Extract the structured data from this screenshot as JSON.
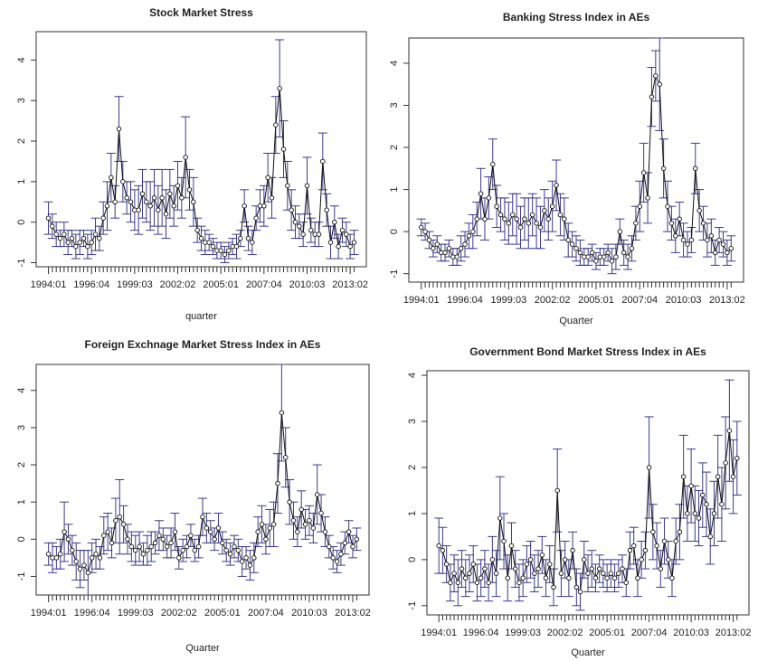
{
  "chart_data": [
    {
      "type": "line",
      "title": "Stock Market Stress",
      "x_label": "quarter",
      "color": "#111111",
      "error_color": "#3b3b8f",
      "categories": [
        "1994:01",
        null,
        null,
        null,
        null,
        null,
        null,
        null,
        null,
        null,
        null,
        "1996:04",
        null,
        null,
        null,
        null,
        null,
        null,
        null,
        null,
        null,
        null,
        "1999:03",
        null,
        null,
        null,
        null,
        null,
        null,
        null,
        null,
        null,
        null,
        "2002:02",
        null,
        null,
        null,
        null,
        null,
        null,
        null,
        null,
        null,
        null,
        "2005:01",
        null,
        null,
        null,
        null,
        null,
        null,
        null,
        null,
        null,
        null,
        "2007:04",
        null,
        null,
        null,
        null,
        null,
        null,
        null,
        null,
        null,
        null,
        "2010:03",
        null,
        null,
        null,
        null,
        null,
        null,
        null,
        null,
        null,
        null,
        "2013:02",
        null
      ],
      "values": [
        0.1,
        -0.1,
        -0.3,
        -0.4,
        -0.3,
        -0.5,
        -0.4,
        -0.6,
        -0.5,
        -0.4,
        -0.6,
        -0.5,
        -0.3,
        -0.4,
        0.1,
        0.4,
        1.1,
        0.5,
        2.3,
        1.0,
        0.6,
        0.5,
        0.3,
        0.3,
        0.7,
        0.5,
        0.4,
        0.6,
        0.3,
        0.6,
        0.2,
        0.7,
        0.4,
        0.9,
        0.6,
        1.6,
        0.8,
        0.5,
        -0.2,
        -0.4,
        -0.5,
        -0.5,
        -0.6,
        -0.7,
        -0.7,
        -0.8,
        -0.7,
        -0.6,
        -0.6,
        -0.4,
        0.4,
        -0.4,
        -0.5,
        0.1,
        0.4,
        0.4,
        1.1,
        0.6,
        2.4,
        3.3,
        1.8,
        0.9,
        0.3,
        0.0,
        -0.1,
        -0.3,
        0.9,
        -0.2,
        -0.3,
        -0.3,
        1.5,
        0.3,
        -0.5,
        0.0,
        -0.6,
        -0.2,
        -0.3,
        -0.6,
        -0.5
      ],
      "errors": [
        0.4,
        0.3,
        0.3,
        0.2,
        0.3,
        0.3,
        0.2,
        0.3,
        0.3,
        0.2,
        0.3,
        0.3,
        0.4,
        0.3,
        0.4,
        0.6,
        0.6,
        0.4,
        0.8,
        0.5,
        0.4,
        0.5,
        0.5,
        0.6,
        0.6,
        0.5,
        0.6,
        0.7,
        0.6,
        0.7,
        0.6,
        0.6,
        0.5,
        0.6,
        0.5,
        1.0,
        0.5,
        0.6,
        0.3,
        0.3,
        0.3,
        0.2,
        0.2,
        0.2,
        0.2,
        0.2,
        0.2,
        0.2,
        0.3,
        0.2,
        0.4,
        0.3,
        0.3,
        0.3,
        0.4,
        0.5,
        0.6,
        0.5,
        0.7,
        1.2,
        0.7,
        0.6,
        0.5,
        0.4,
        0.3,
        0.3,
        0.7,
        0.3,
        0.3,
        0.3,
        0.7,
        0.4,
        0.4,
        0.4,
        0.3,
        0.3,
        0.3,
        0.3,
        0.3
      ],
      "ylim": [
        -1.1,
        4.7
      ],
      "yticks": [
        -1,
        0,
        1,
        2,
        3,
        4
      ]
    },
    {
      "type": "line",
      "title": "Banking Stress Index in AEs",
      "x_label": "Quarter",
      "color": "#111111",
      "error_color": "#3b3b8f",
      "categories": [
        "1994:01",
        null,
        null,
        null,
        null,
        null,
        null,
        null,
        null,
        null,
        null,
        "1996:04",
        null,
        null,
        null,
        null,
        null,
        null,
        null,
        null,
        null,
        null,
        "1999:03",
        null,
        null,
        null,
        null,
        null,
        null,
        null,
        null,
        null,
        null,
        "2002:02",
        null,
        null,
        null,
        null,
        null,
        null,
        null,
        null,
        null,
        null,
        "2005:01",
        null,
        null,
        null,
        null,
        null,
        null,
        null,
        null,
        null,
        null,
        "2007:04",
        null,
        null,
        null,
        null,
        null,
        null,
        null,
        null,
        null,
        null,
        "2010:03",
        null,
        null,
        null,
        null,
        null,
        null,
        null,
        null,
        null,
        null,
        "2013:02",
        null
      ],
      "values": [
        0.1,
        0.0,
        -0.2,
        -0.4,
        -0.3,
        -0.5,
        -0.5,
        -0.4,
        -0.6,
        -0.6,
        -0.4,
        -0.3,
        -0.1,
        0.0,
        0.3,
        0.9,
        0.3,
        0.8,
        1.6,
        0.6,
        0.4,
        0.3,
        0.2,
        0.4,
        0.3,
        0.1,
        0.3,
        0.2,
        0.4,
        0.2,
        0.1,
        0.5,
        0.3,
        0.6,
        1.1,
        0.4,
        0.3,
        -0.2,
        -0.3,
        -0.4,
        -0.5,
        -0.6,
        -0.6,
        -0.5,
        -0.7,
        -0.6,
        -0.6,
        -0.5,
        -0.7,
        -0.6,
        0.0,
        -0.5,
        -0.6,
        -0.4,
        0.2,
        0.6,
        1.4,
        0.8,
        3.2,
        3.7,
        3.5,
        1.5,
        0.6,
        0.2,
        -0.1,
        0.3,
        -0.2,
        -0.3,
        -0.2,
        1.5,
        0.5,
        0.2,
        -0.2,
        -0.1,
        -0.5,
        -0.2,
        -0.3,
        -0.5,
        -0.4
      ],
      "errors": [
        0.2,
        0.2,
        0.2,
        0.2,
        0.2,
        0.2,
        0.2,
        0.2,
        0.2,
        0.2,
        0.3,
        0.3,
        0.3,
        0.4,
        0.4,
        0.6,
        0.5,
        0.5,
        0.6,
        0.5,
        0.4,
        0.5,
        0.5,
        0.5,
        0.6,
        0.5,
        0.5,
        0.6,
        0.5,
        0.6,
        0.5,
        0.5,
        0.5,
        0.6,
        0.6,
        0.5,
        0.5,
        0.4,
        0.3,
        0.3,
        0.3,
        0.2,
        0.2,
        0.2,
        0.2,
        0.2,
        0.2,
        0.2,
        0.3,
        0.3,
        0.3,
        0.3,
        0.3,
        0.3,
        0.4,
        0.6,
        0.7,
        0.6,
        0.7,
        0.6,
        1.1,
        0.7,
        0.6,
        0.4,
        0.4,
        0.4,
        0.4,
        0.3,
        0.3,
        0.6,
        0.5,
        0.4,
        0.4,
        0.4,
        0.3,
        0.3,
        0.3,
        0.3,
        0.3
      ],
      "ylim": [
        -1.2,
        4.6
      ],
      "yticks": [
        -1,
        0,
        1,
        2,
        3,
        4
      ]
    },
    {
      "type": "line",
      "title": "Foreign Exchnage Market Stress Index in AEs",
      "x_label": "Quarter",
      "color": "#111111",
      "error_color": "#3b3b8f",
      "categories": [
        "1994:01",
        null,
        null,
        null,
        null,
        null,
        null,
        null,
        null,
        null,
        null,
        "1996:04",
        null,
        null,
        null,
        null,
        null,
        null,
        null,
        null,
        null,
        null,
        "1999:03",
        null,
        null,
        null,
        null,
        null,
        null,
        null,
        null,
        null,
        null,
        "2002:02",
        null,
        null,
        null,
        null,
        null,
        null,
        null,
        null,
        null,
        null,
        "2005:01",
        null,
        null,
        null,
        null,
        null,
        null,
        null,
        null,
        null,
        null,
        "2007:04",
        null,
        null,
        null,
        null,
        null,
        null,
        null,
        null,
        null,
        null,
        "2010:03",
        null,
        null,
        null,
        null,
        null,
        null,
        null,
        null,
        null,
        null,
        "2013:02",
        null
      ],
      "values": [
        -0.4,
        -0.5,
        -0.5,
        -0.4,
        0.2,
        0.0,
        -0.3,
        -0.6,
        -0.8,
        -0.7,
        -0.9,
        -0.5,
        -0.4,
        -0.5,
        0.1,
        0.2,
        -0.1,
        0.5,
        0.6,
        0.4,
        0.0,
        -0.2,
        -0.3,
        -0.2,
        -0.4,
        -0.3,
        -0.2,
        -0.1,
        0.1,
        0.0,
        -0.2,
        -0.1,
        0.2,
        -0.5,
        -0.3,
        -0.2,
        0.1,
        -0.3,
        -0.2,
        0.6,
        0.3,
        0.2,
        0.0,
        0.3,
        -0.1,
        -0.3,
        -0.4,
        -0.2,
        -0.3,
        -0.6,
        -0.5,
        -0.7,
        -0.5,
        0.2,
        0.4,
        0.0,
        0.3,
        0.4,
        1.5,
        3.4,
        2.2,
        1.0,
        0.5,
        0.2,
        0.8,
        0.4,
        0.5,
        0.3,
        1.2,
        0.7,
        0.2,
        -0.2,
        -0.5,
        -0.6,
        -0.4,
        -0.1,
        0.2,
        -0.2,
        0.0
      ],
      "errors": [
        0.3,
        0.4,
        0.3,
        0.4,
        0.8,
        0.4,
        0.4,
        0.5,
        0.5,
        0.4,
        0.6,
        0.4,
        0.4,
        0.3,
        0.5,
        0.5,
        0.4,
        0.6,
        1.0,
        0.5,
        0.4,
        0.4,
        0.4,
        0.4,
        0.3,
        0.4,
        0.4,
        0.3,
        0.4,
        0.3,
        0.3,
        0.4,
        0.5,
        0.3,
        0.3,
        0.3,
        0.3,
        0.3,
        0.3,
        0.5,
        0.4,
        0.3,
        0.3,
        0.4,
        0.3,
        0.3,
        0.3,
        0.3,
        0.3,
        0.4,
        0.3,
        0.4,
        0.4,
        0.4,
        0.5,
        0.4,
        0.5,
        0.6,
        0.8,
        1.3,
        0.8,
        0.6,
        0.5,
        0.4,
        0.5,
        0.4,
        0.4,
        0.4,
        0.8,
        0.5,
        0.4,
        0.3,
        0.3,
        0.3,
        0.3,
        0.3,
        0.3,
        0.3,
        0.3
      ],
      "ylim": [
        -1.5,
        4.7
      ],
      "yticks": [
        -1,
        0,
        1,
        2,
        3,
        4
      ]
    },
    {
      "type": "line",
      "title": "Government Bond Market Stress Index in AEs",
      "x_label": "Quarter",
      "color": "#111111",
      "error_color": "#3b3b8f",
      "categories": [
        "1994:01",
        null,
        null,
        null,
        null,
        null,
        null,
        null,
        null,
        null,
        null,
        "1996:04",
        null,
        null,
        null,
        null,
        null,
        null,
        null,
        null,
        null,
        null,
        "1999:03",
        null,
        null,
        null,
        null,
        null,
        null,
        null,
        null,
        null,
        null,
        "2002:02",
        null,
        null,
        null,
        null,
        null,
        null,
        null,
        null,
        null,
        null,
        "2005:01",
        null,
        null,
        null,
        null,
        null,
        null,
        null,
        null,
        null,
        null,
        "2007:04",
        null,
        null,
        null,
        null,
        null,
        null,
        null,
        null,
        null,
        null,
        "2010:03",
        null,
        null,
        null,
        null,
        null,
        null,
        null,
        null,
        null,
        null,
        "2013:02",
        null
      ],
      "values": [
        0.3,
        0.2,
        -0.1,
        -0.5,
        -0.3,
        -0.5,
        -0.2,
        -0.4,
        -0.3,
        -0.1,
        -0.5,
        -0.4,
        -0.2,
        -0.5,
        0.0,
        -0.3,
        0.9,
        0.4,
        -0.4,
        0.3,
        -0.2,
        -0.5,
        -0.4,
        -0.1,
        0.0,
        -0.3,
        -0.2,
        0.1,
        -0.4,
        -0.1,
        -0.6,
        1.5,
        -0.3,
        0.0,
        -0.4,
        0.2,
        -0.6,
        -0.7,
        0.0,
        -0.3,
        -0.2,
        -0.4,
        -0.2,
        -0.3,
        -0.4,
        -0.3,
        -0.4,
        -0.3,
        -0.2,
        -0.5,
        0.2,
        0.3,
        -0.4,
        0.0,
        0.2,
        2.0,
        0.6,
        0.3,
        -0.2,
        0.4,
        0.0,
        -0.4,
        0.4,
        0.6,
        1.8,
        1.0,
        1.6,
        1.0,
        0.9,
        1.4,
        1.2,
        0.5,
        1.0,
        1.8,
        1.2,
        2.1,
        2.8,
        1.8,
        2.2
      ],
      "errors": [
        0.6,
        0.5,
        0.4,
        0.4,
        0.4,
        0.5,
        0.4,
        0.4,
        0.4,
        0.4,
        0.4,
        0.4,
        0.4,
        0.4,
        0.5,
        0.5,
        0.9,
        0.6,
        0.5,
        0.5,
        0.4,
        0.4,
        0.4,
        0.4,
        0.4,
        0.4,
        0.4,
        0.4,
        0.4,
        0.4,
        0.4,
        0.9,
        0.5,
        0.4,
        0.4,
        0.4,
        0.4,
        0.4,
        0.4,
        0.4,
        0.4,
        0.3,
        0.3,
        0.3,
        0.3,
        0.3,
        0.3,
        0.3,
        0.3,
        0.3,
        0.4,
        0.4,
        0.4,
        0.4,
        0.4,
        1.1,
        0.6,
        0.5,
        0.4,
        0.5,
        0.4,
        0.4,
        0.5,
        0.6,
        0.9,
        0.6,
        0.8,
        0.6,
        0.6,
        0.7,
        0.7,
        0.6,
        0.7,
        0.9,
        0.8,
        1.0,
        1.1,
        0.8,
        0.8
      ],
      "ylim": [
        -1.2,
        4.1
      ],
      "yticks": [
        -1,
        0,
        1,
        2,
        3,
        4
      ]
    }
  ]
}
